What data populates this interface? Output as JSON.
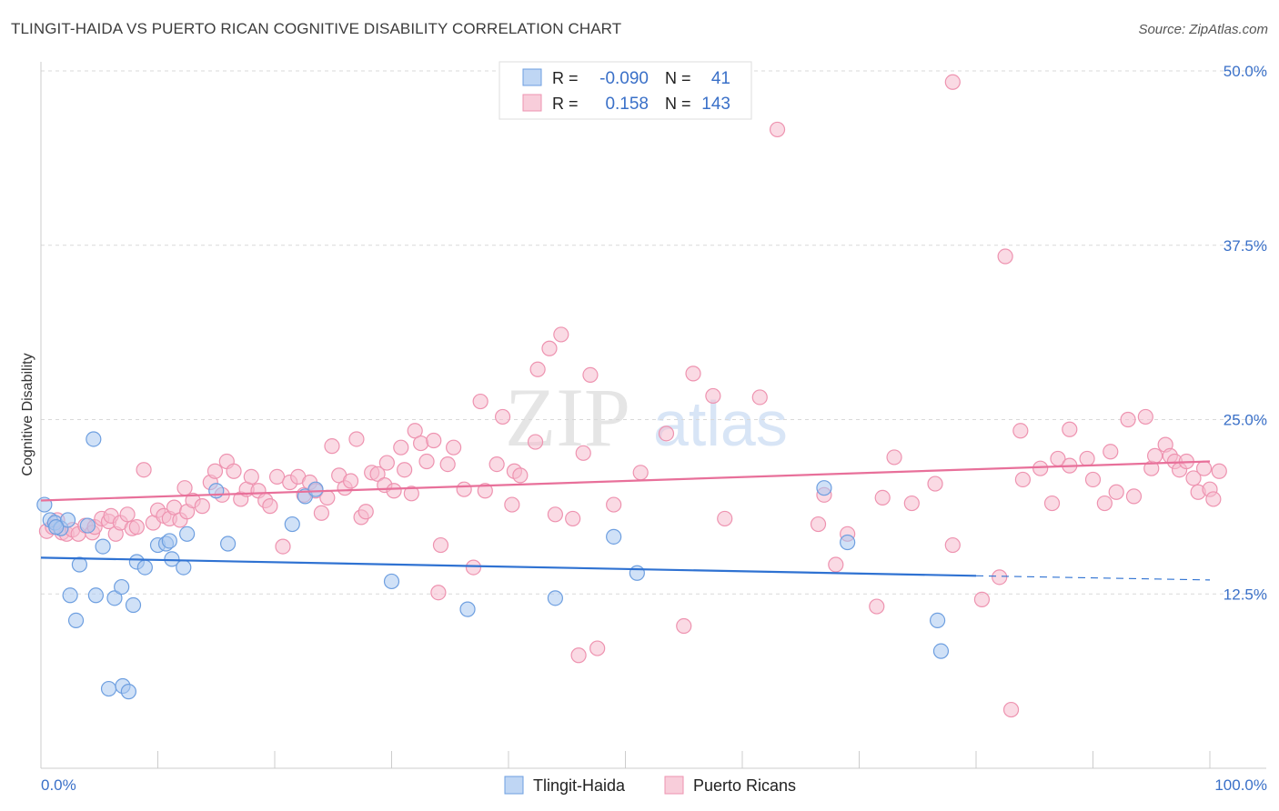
{
  "header": {
    "title": "TLINGIT-HAIDA VS PUERTO RICAN COGNITIVE DISABILITY CORRELATION CHART",
    "source": "Source: ZipAtlas.com"
  },
  "watermark": {
    "zip": "ZIP",
    "atlas": "atlas"
  },
  "legend_box": {
    "rows": [
      {
        "r_label": "R =",
        "r_value": "-0.090",
        "n_label": "N =",
        "n_value": "41"
      },
      {
        "r_label": "R =",
        "r_value": "0.158",
        "n_label": "N =",
        "n_value": "143"
      }
    ]
  },
  "colors": {
    "blue_fill": "#a9c8f0",
    "blue_stroke": "#6e9fe0",
    "blue_line": "#2f72d2",
    "pink_fill": "#f6bccd",
    "pink_stroke": "#ee93b0",
    "pink_line": "#e8709a",
    "value_text": "#3a70c8",
    "grid": "#d9d9d9"
  },
  "chart_data": {
    "type": "scatter",
    "title": "TLINGIT-HAIDA VS PUERTO RICAN COGNITIVE DISABILITY CORRELATION CHART",
    "xlabel": "",
    "ylabel": "Cognitive Disability",
    "xlim": [
      0,
      100
    ],
    "ylim": [
      0,
      50
    ],
    "x_tick_labels": [
      "0.0%",
      "100.0%"
    ],
    "y_ticks": [
      12.5,
      25,
      37.5,
      50
    ],
    "y_tick_labels": [
      "12.5%",
      "25.0%",
      "37.5%",
      "50.0%"
    ],
    "grid": true,
    "legend": [
      "Tlingit-Haida",
      "Puerto Ricans"
    ],
    "series": [
      {
        "name": "Tlingit-Haida",
        "r": -0.09,
        "n": 41,
        "trend": {
          "x0": 0,
          "y0": 15.1,
          "x1": 80,
          "y1": 13.8,
          "dash_to": 100,
          "dash_y": 13.5
        },
        "points": [
          [
            0.3,
            18.9
          ],
          [
            0.8,
            17.8
          ],
          [
            1.2,
            17.6
          ],
          [
            1.7,
            17.2
          ],
          [
            2.3,
            17.8
          ],
          [
            4.0,
            17.4
          ],
          [
            1.3,
            17.3
          ],
          [
            2.5,
            12.4
          ],
          [
            3.0,
            10.6
          ],
          [
            3.3,
            14.6
          ],
          [
            4.5,
            23.6
          ],
          [
            4.7,
            12.4
          ],
          [
            5.3,
            15.9
          ],
          [
            5.8,
            5.7
          ],
          [
            6.3,
            12.2
          ],
          [
            6.9,
            13.0
          ],
          [
            7.0,
            5.9
          ],
          [
            7.5,
            5.5
          ],
          [
            7.9,
            11.7
          ],
          [
            8.2,
            14.8
          ],
          [
            8.9,
            14.4
          ],
          [
            10.0,
            16.0
          ],
          [
            10.7,
            16.1
          ],
          [
            11.0,
            16.3
          ],
          [
            11.2,
            15.0
          ],
          [
            12.2,
            14.4
          ],
          [
            12.5,
            16.8
          ],
          [
            15.0,
            19.9
          ],
          [
            16.0,
            16.1
          ],
          [
            21.5,
            17.5
          ],
          [
            22.6,
            19.5
          ],
          [
            23.5,
            20.0
          ],
          [
            30.0,
            13.4
          ],
          [
            36.5,
            11.4
          ],
          [
            44.0,
            12.2
          ],
          [
            49.0,
            16.6
          ],
          [
            51.0,
            14.0
          ],
          [
            67.0,
            20.1
          ],
          [
            69.0,
            16.2
          ],
          [
            76.7,
            10.6
          ],
          [
            77.0,
            8.4
          ]
        ]
      },
      {
        "name": "Puerto Ricans",
        "r": 0.158,
        "n": 143,
        "trend": {
          "x0": 0,
          "y0": 19.2,
          "x1": 100,
          "y1": 22.0
        },
        "points": [
          [
            0.5,
            17.0
          ],
          [
            1.0,
            17.3
          ],
          [
            1.4,
            17.8
          ],
          [
            1.8,
            16.9
          ],
          [
            2.2,
            16.8
          ],
          [
            2.7,
            17.1
          ],
          [
            3.2,
            16.8
          ],
          [
            3.8,
            17.4
          ],
          [
            4.4,
            16.9
          ],
          [
            4.6,
            17.3
          ],
          [
            5.2,
            17.9
          ],
          [
            5.8,
            17.7
          ],
          [
            6.0,
            18.1
          ],
          [
            6.4,
            16.8
          ],
          [
            6.8,
            17.6
          ],
          [
            7.4,
            18.2
          ],
          [
            7.8,
            17.2
          ],
          [
            8.2,
            17.3
          ],
          [
            8.8,
            21.4
          ],
          [
            9.6,
            17.6
          ],
          [
            10.0,
            18.5
          ],
          [
            10.5,
            18.1
          ],
          [
            11.0,
            17.9
          ],
          [
            11.4,
            18.7
          ],
          [
            11.9,
            17.8
          ],
          [
            12.5,
            18.4
          ],
          [
            13.0,
            19.2
          ],
          [
            12.3,
            20.1
          ],
          [
            13.8,
            18.8
          ],
          [
            14.5,
            20.5
          ],
          [
            14.9,
            21.3
          ],
          [
            15.5,
            19.6
          ],
          [
            15.9,
            22.0
          ],
          [
            16.5,
            21.3
          ],
          [
            17.1,
            19.3
          ],
          [
            17.6,
            20.0
          ],
          [
            18.0,
            20.9
          ],
          [
            18.6,
            19.9
          ],
          [
            19.2,
            19.2
          ],
          [
            19.6,
            18.8
          ],
          [
            20.2,
            20.9
          ],
          [
            20.7,
            15.9
          ],
          [
            21.3,
            20.5
          ],
          [
            22.0,
            20.9
          ],
          [
            22.5,
            19.6
          ],
          [
            23.0,
            20.5
          ],
          [
            23.5,
            19.9
          ],
          [
            24.0,
            18.3
          ],
          [
            24.5,
            19.4
          ],
          [
            24.9,
            23.1
          ],
          [
            25.5,
            21.0
          ],
          [
            26.0,
            20.1
          ],
          [
            26.5,
            20.6
          ],
          [
            27.0,
            23.6
          ],
          [
            27.4,
            18.0
          ],
          [
            27.8,
            18.4
          ],
          [
            28.3,
            21.2
          ],
          [
            28.8,
            21.1
          ],
          [
            29.4,
            20.3
          ],
          [
            29.6,
            21.9
          ],
          [
            30.2,
            19.9
          ],
          [
            30.8,
            23.0
          ],
          [
            31.1,
            21.4
          ],
          [
            31.7,
            19.7
          ],
          [
            32.0,
            24.2
          ],
          [
            32.5,
            23.3
          ],
          [
            33.0,
            22.0
          ],
          [
            33.6,
            23.5
          ],
          [
            34.2,
            16.0
          ],
          [
            34.0,
            12.6
          ],
          [
            34.8,
            21.8
          ],
          [
            35.3,
            23.0
          ],
          [
            36.2,
            20.0
          ],
          [
            37.0,
            14.4
          ],
          [
            37.6,
            26.3
          ],
          [
            38.0,
            19.9
          ],
          [
            39.0,
            21.8
          ],
          [
            39.5,
            25.2
          ],
          [
            40.5,
            21.3
          ],
          [
            40.3,
            18.9
          ],
          [
            41.0,
            21.0
          ],
          [
            42.3,
            23.4
          ],
          [
            42.5,
            28.6
          ],
          [
            43.5,
            30.1
          ],
          [
            44.0,
            18.2
          ],
          [
            44.5,
            31.1
          ],
          [
            45.5,
            17.9
          ],
          [
            46.0,
            8.1
          ],
          [
            46.4,
            22.6
          ],
          [
            47.0,
            28.2
          ],
          [
            47.6,
            8.6
          ],
          [
            49.0,
            18.9
          ],
          [
            51.3,
            21.2
          ],
          [
            53.5,
            24.0
          ],
          [
            55.0,
            10.2
          ],
          [
            55.8,
            28.3
          ],
          [
            57.5,
            26.7
          ],
          [
            58.5,
            17.9
          ],
          [
            61.5,
            26.6
          ],
          [
            66.5,
            17.5
          ],
          [
            67.0,
            19.6
          ],
          [
            68.0,
            14.6
          ],
          [
            69.0,
            16.8
          ],
          [
            71.5,
            11.6
          ],
          [
            72.0,
            19.4
          ],
          [
            73.0,
            22.3
          ],
          [
            74.5,
            19.0
          ],
          [
            76.5,
            20.4
          ],
          [
            78.0,
            16.0
          ],
          [
            80.5,
            12.1
          ],
          [
            82.0,
            13.7
          ],
          [
            82.5,
            36.7
          ],
          [
            83.0,
            4.2
          ],
          [
            83.8,
            24.2
          ],
          [
            84.0,
            20.7
          ],
          [
            85.5,
            21.5
          ],
          [
            86.5,
            19.0
          ],
          [
            87.0,
            22.2
          ],
          [
            88.0,
            24.3
          ],
          [
            88.0,
            21.7
          ],
          [
            89.5,
            22.2
          ],
          [
            90.0,
            20.7
          ],
          [
            91.0,
            19.0
          ],
          [
            91.5,
            22.7
          ],
          [
            92.0,
            19.8
          ],
          [
            93.0,
            25.0
          ],
          [
            93.5,
            19.5
          ],
          [
            94.5,
            25.2
          ],
          [
            95.0,
            21.5
          ],
          [
            95.3,
            22.4
          ],
          [
            96.2,
            23.2
          ],
          [
            96.6,
            22.4
          ],
          [
            97.0,
            22.0
          ],
          [
            97.4,
            21.4
          ],
          [
            98.0,
            22.0
          ],
          [
            98.6,
            20.8
          ],
          [
            99.0,
            19.8
          ],
          [
            99.5,
            21.5
          ],
          [
            100.0,
            20.0
          ],
          [
            100.3,
            19.3
          ],
          [
            100.8,
            21.3
          ],
          [
            63.0,
            45.8
          ],
          [
            78.0,
            49.2
          ]
        ]
      }
    ]
  }
}
